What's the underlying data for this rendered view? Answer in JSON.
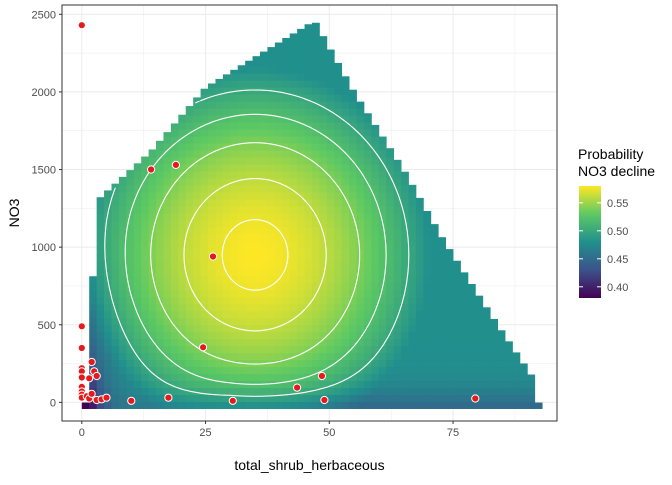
{
  "chart_data": {
    "type": "heatmap",
    "title": "",
    "xlabel": "total_shrub_herbaceous",
    "ylabel": "NO3",
    "xlim": [
      -4,
      96
    ],
    "ylim": [
      -120,
      2560
    ],
    "x_ticks": [
      0,
      25,
      50,
      75
    ],
    "x_tick_labels": [
      "0",
      "25",
      "50",
      "75"
    ],
    "y_ticks": [
      0,
      500,
      1000,
      1500,
      2000,
      2500
    ],
    "y_tick_labels": [
      "0",
      "500",
      "1000",
      "1500",
      "2000",
      "2500"
    ],
    "grid": true,
    "legend": {
      "title": "Probability\nNO3 decline",
      "placement": "right",
      "min": 0.38,
      "max": 0.58,
      "breaks": [
        0.4,
        0.45,
        0.5,
        0.55
      ],
      "break_labels": [
        "0.40",
        "0.45",
        "0.50",
        "0.55"
      ]
    },
    "colors": {
      "scale": [
        "#440154",
        "#3b528b",
        "#21908d",
        "#5dc963",
        "#fde725"
      ],
      "points": "#e41a1c",
      "contour": "#ffffff",
      "panel_border": "#333333",
      "grid": "#ebebeb"
    },
    "heatmap_region": {
      "x_range": [
        0,
        92
      ],
      "upper_boundary": [
        [
          1,
          0
        ],
        [
          3,
          1300
        ],
        [
          14,
          1620
        ],
        [
          25,
          2030
        ],
        [
          47,
          2460
        ],
        [
          55,
          2000
        ],
        [
          65,
          1500
        ],
        [
          73,
          1050
        ],
        [
          84,
          500
        ],
        [
          92,
          120
        ]
      ],
      "surface_peak": [
        35,
        950
      ],
      "peak_value": 0.58,
      "edge_value": 0.48,
      "corner_value": 0.38
    },
    "contour_levels": [
      0.5,
      0.52,
      0.54,
      0.56,
      0.575
    ],
    "points": [
      {
        "x": 0,
        "y": 2430
      },
      {
        "x": 14,
        "y": 1500
      },
      {
        "x": 19,
        "y": 1530
      },
      {
        "x": 26.5,
        "y": 940
      },
      {
        "x": 0,
        "y": 490
      },
      {
        "x": 0,
        "y": 350
      },
      {
        "x": 24.5,
        "y": 355
      },
      {
        "x": 0,
        "y": 220
      },
      {
        "x": 0,
        "y": 200
      },
      {
        "x": 0,
        "y": 160
      },
      {
        "x": 0,
        "y": 100
      },
      {
        "x": 0,
        "y": 70
      },
      {
        "x": 0,
        "y": 50
      },
      {
        "x": 0,
        "y": 30
      },
      {
        "x": 1,
        "y": 40
      },
      {
        "x": 1.5,
        "y": 25
      },
      {
        "x": 2,
        "y": 260
      },
      {
        "x": 2.5,
        "y": 200
      },
      {
        "x": 3,
        "y": 170
      },
      {
        "x": 1.5,
        "y": 155
      },
      {
        "x": 2,
        "y": 55
      },
      {
        "x": 3,
        "y": 15
      },
      {
        "x": 4,
        "y": 20
      },
      {
        "x": 5,
        "y": 30
      },
      {
        "x": 10,
        "y": 10
      },
      {
        "x": 17.5,
        "y": 30
      },
      {
        "x": 30.5,
        "y": 10
      },
      {
        "x": 43.5,
        "y": 95
      },
      {
        "x": 48.5,
        "y": 170
      },
      {
        "x": 49,
        "y": 15
      },
      {
        "x": 79.5,
        "y": 25
      }
    ]
  }
}
